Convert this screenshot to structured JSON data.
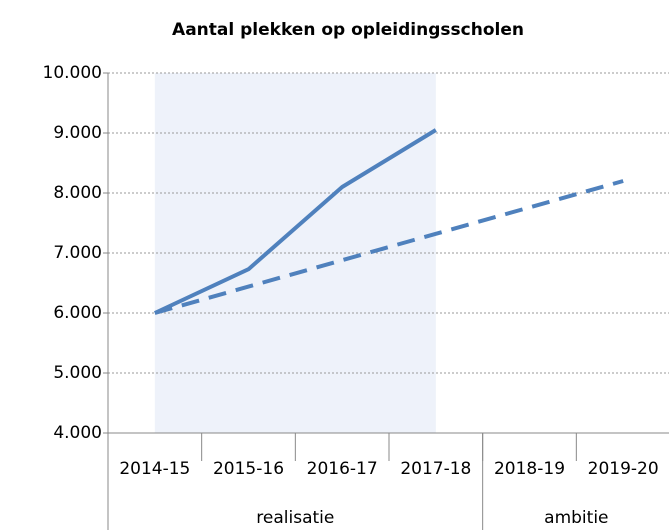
{
  "chart_data": {
    "type": "line",
    "title": "Aantal plekken op opleidingsscholen",
    "categories": [
      "2014-15",
      "2015-16",
      "2016-17",
      "2017-18",
      "2018-19",
      "2019-20"
    ],
    "groups": [
      {
        "label": "realisatie",
        "count": 4
      },
      {
        "label": "ambitie",
        "count": 2
      }
    ],
    "series": [
      {
        "color": "#4f81bd",
        "dash": "solid",
        "values": [
          6000,
          6730,
          8100,
          9050,
          null,
          null
        ]
      },
      {
        "color": "#4f81bd",
        "dash": "dashed",
        "values": [
          6000,
          6440,
          6880,
          7320,
          7760,
          8200
        ]
      }
    ],
    "highlight_range": [
      0,
      3
    ],
    "highlight_color": "#eef2fa",
    "ylim": [
      4000,
      10000
    ],
    "yticks": [
      {
        "value": 4000,
        "label": "4.000"
      },
      {
        "value": 5000,
        "label": "5.000"
      },
      {
        "value": 6000,
        "label": "6.000"
      },
      {
        "value": 7000,
        "label": "7.000"
      },
      {
        "value": 8000,
        "label": "8.000"
      },
      {
        "value": 9000,
        "label": "9.000"
      },
      {
        "value": 10000,
        "label": "10.000"
      }
    ],
    "grid": true
  }
}
